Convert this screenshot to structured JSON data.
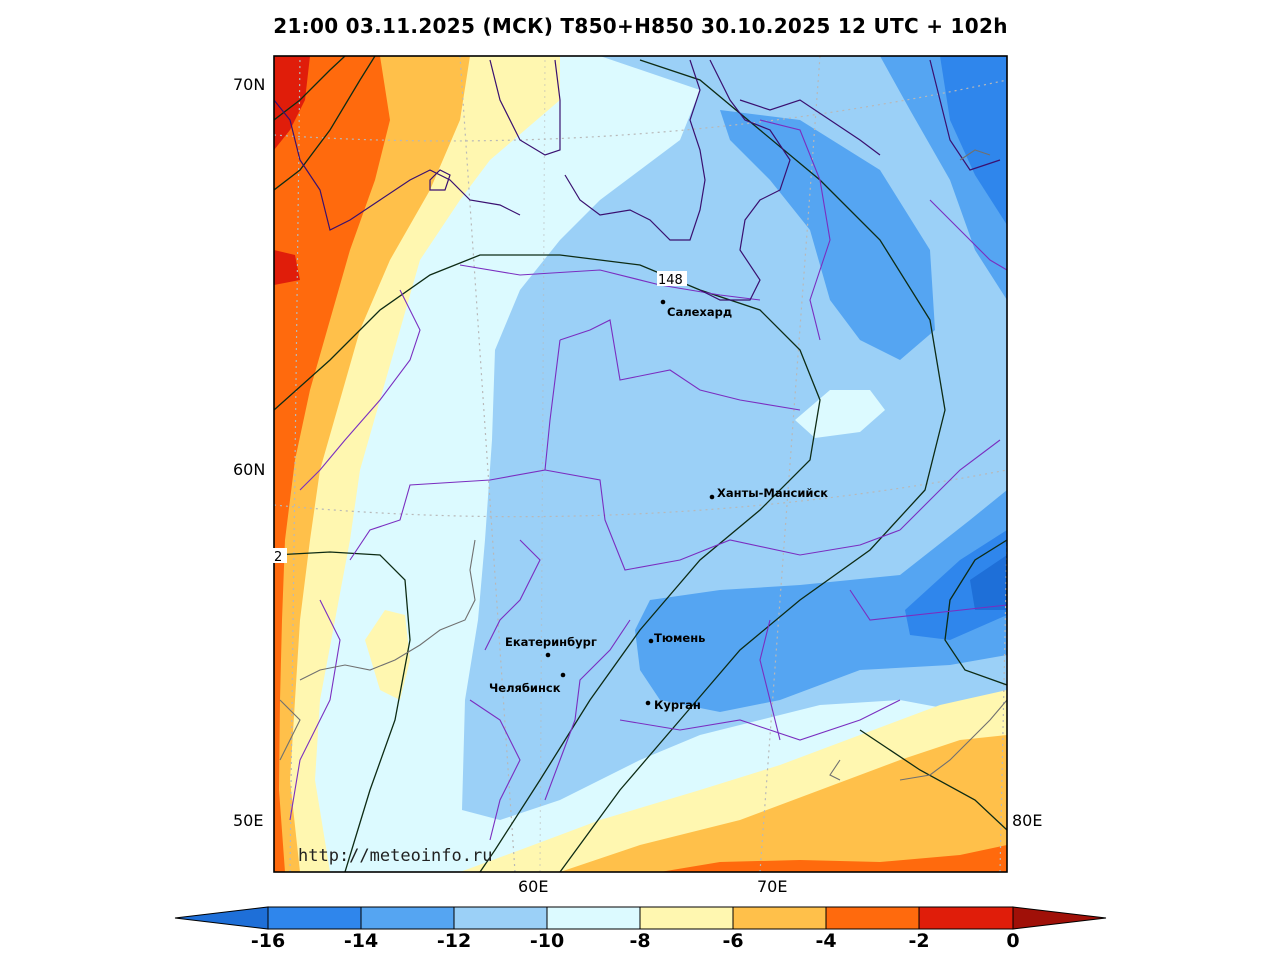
{
  "title": "21:00 03.11.2025 (МСК) T850+H850 30.10.2025 12 UTC + 102h",
  "lat_labels": [
    "70N",
    "60N",
    "50E"
  ],
  "lon_labels": [
    "60E",
    "70E",
    "80E"
  ],
  "contour_labels": [
    "148",
    "2"
  ],
  "cities": [
    {
      "name": "Салехард"
    },
    {
      "name": "Ханты-Мансийск"
    },
    {
      "name": "Екатеринбург"
    },
    {
      "name": "Тюмень"
    },
    {
      "name": "Челябинск"
    },
    {
      "name": "Курган"
    }
  ],
  "watermark": "http://meteoinfo.ru",
  "colorbar": {
    "labels": [
      "-16",
      "-14",
      "-12",
      "-10",
      "-8",
      "-6",
      "-4",
      "-2",
      "0"
    ],
    "colors": [
      "#1e6fd8",
      "#2f86ec",
      "#55a5f2",
      "#9bd0f7",
      "#dcfaff",
      "#fff7b0",
      "#ffc04a",
      "#ff6a0d",
      "#e01d0a",
      "#a01008"
    ]
  }
}
